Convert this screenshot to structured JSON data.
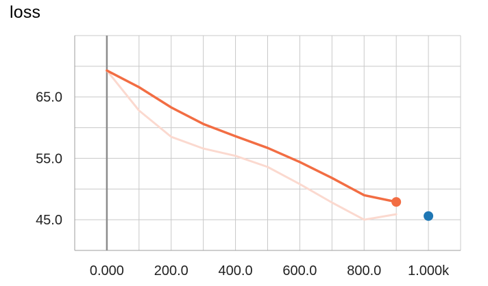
{
  "chart_data": {
    "type": "line",
    "title": "loss",
    "xlabel": "",
    "ylabel": "",
    "xlim": [
      -100,
      1100
    ],
    "ylim": [
      40,
      75
    ],
    "x_ticks": [
      0,
      200,
      400,
      600,
      800,
      1000
    ],
    "x_tick_labels": [
      "0.000",
      "200.0",
      "400.0",
      "600.0",
      "800.0",
      "1.000k"
    ],
    "y_ticks": [
      45,
      55,
      65
    ],
    "y_tick_labels": [
      "45.0",
      "55.0",
      "65.0"
    ],
    "grid": true,
    "series": [
      {
        "role": "raw",
        "color": "#fbd9cf",
        "x": [
          0,
          100,
          200,
          300,
          400,
          500,
          600,
          700,
          800,
          900
        ],
        "y": [
          69.3,
          62.8,
          58.5,
          56.6,
          55.4,
          53.6,
          50.8,
          47.8,
          45.0,
          45.9
        ]
      },
      {
        "role": "smoothed",
        "color": "#f26d43",
        "x": [
          0,
          100,
          200,
          300,
          400,
          500,
          600,
          700,
          800,
          900
        ],
        "y": [
          69.3,
          66.6,
          63.3,
          60.6,
          58.6,
          56.7,
          54.4,
          51.8,
          49.0,
          47.9
        ],
        "end_marker": true
      },
      {
        "role": "point",
        "color": "#1f77b4",
        "x": [
          1000
        ],
        "y": [
          45.6
        ]
      }
    ]
  }
}
